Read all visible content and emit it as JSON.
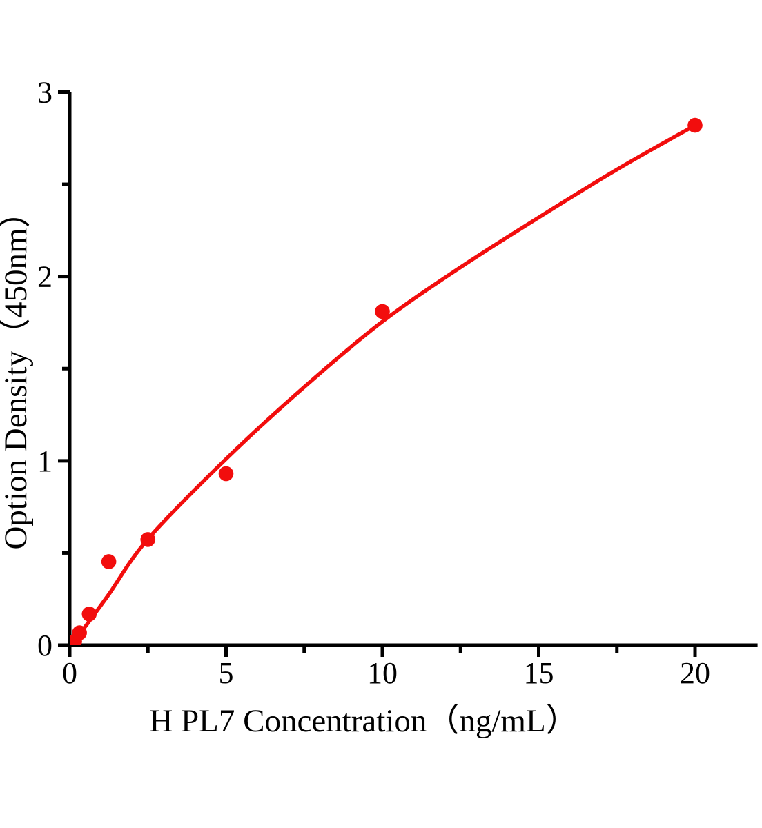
{
  "chart_data": {
    "type": "scatter",
    "title": "",
    "xlabel": "H PL7 Concentration（ng/mL）",
    "ylabel": "Option Density（450nm）",
    "xlim": [
      0,
      22
    ],
    "ylim": [
      0,
      3
    ],
    "grid": false,
    "legend": null,
    "x_major_ticks": [
      0,
      5,
      10,
      15,
      20
    ],
    "x_minor_ticks": [
      2.5,
      7.5,
      12.5,
      17.5
    ],
    "y_major_ticks": [
      0,
      1,
      2,
      3
    ],
    "y_minor_ticks": [
      0.5,
      1.5,
      2.5
    ],
    "points": [
      {
        "x": 0.156,
        "y": 0.02
      },
      {
        "x": 0.3125,
        "y": 0.067
      },
      {
        "x": 0.625,
        "y": 0.169
      },
      {
        "x": 1.25,
        "y": 0.453
      },
      {
        "x": 2.5,
        "y": 0.573
      },
      {
        "x": 5,
        "y": 0.93
      },
      {
        "x": 10,
        "y": 1.81
      },
      {
        "x": 20,
        "y": 2.82
      }
    ],
    "fit_curve": [
      [
        0,
        0
      ],
      [
        0.3125,
        0.06
      ],
      [
        0.625,
        0.13
      ],
      [
        1.25,
        0.275
      ],
      [
        2.5,
        0.575
      ],
      [
        5,
        1.01
      ],
      [
        7.5,
        1.4
      ],
      [
        10,
        1.755
      ],
      [
        12.5,
        2.05
      ],
      [
        15,
        2.32
      ],
      [
        17.5,
        2.58
      ],
      [
        20,
        2.82
      ]
    ],
    "series_color": "#f20d0d",
    "axis_color": "#000000",
    "point_radius_px": 10.8
  }
}
